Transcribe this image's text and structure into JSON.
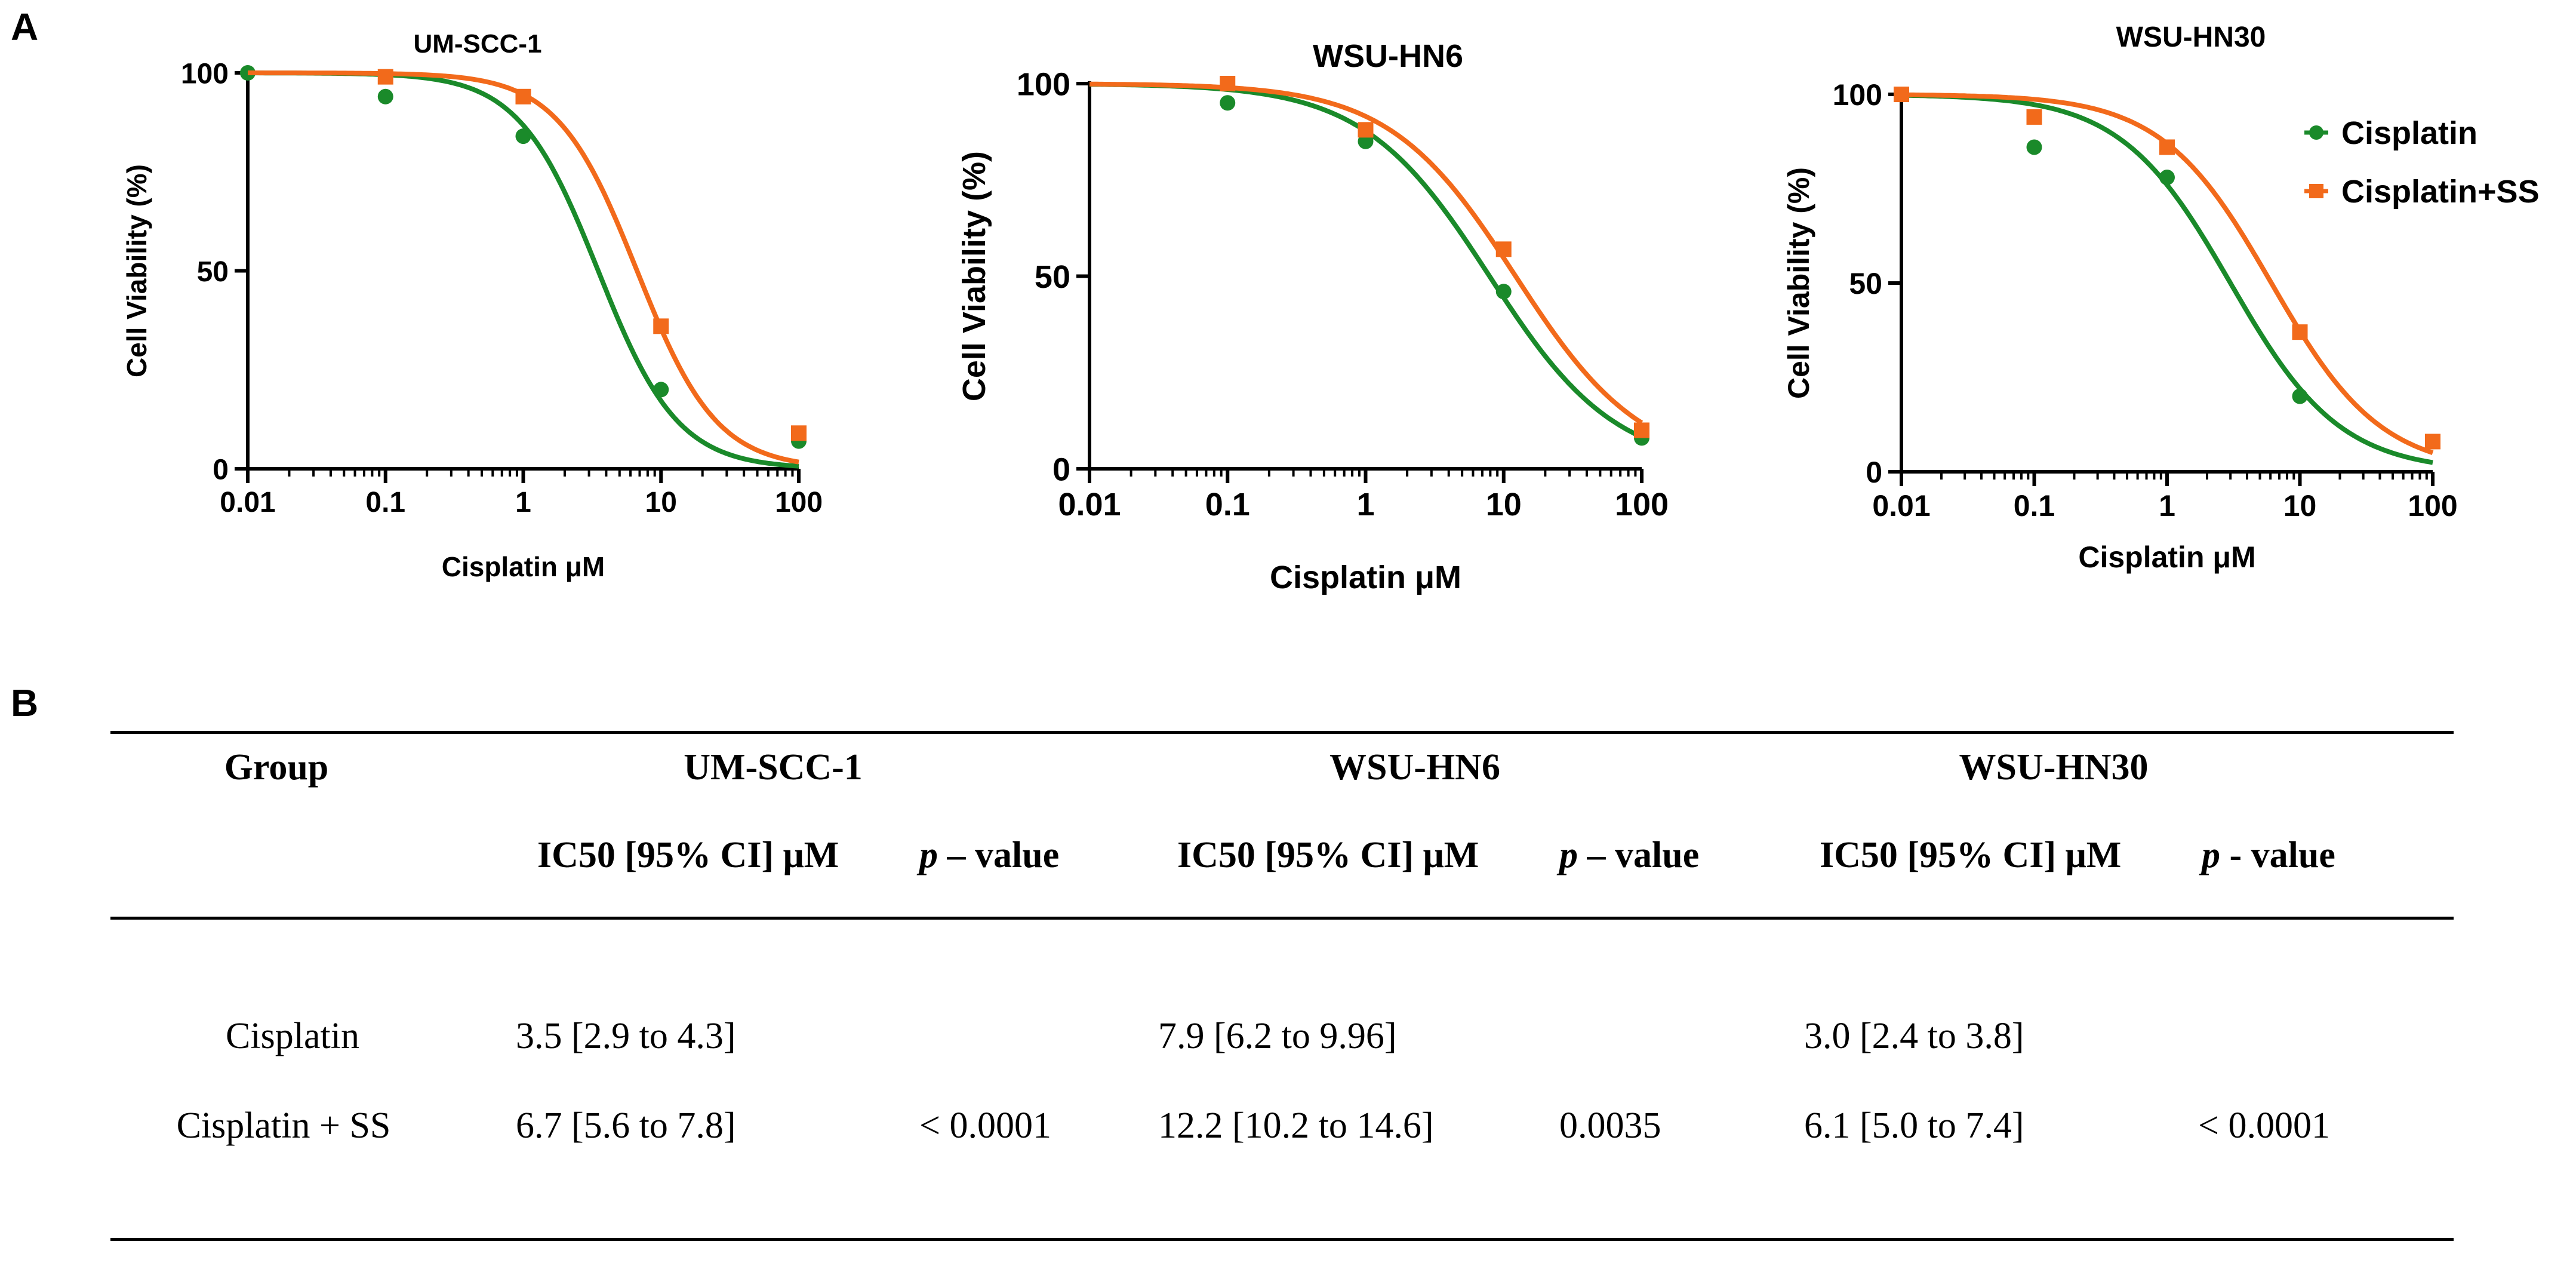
{
  "panels": {
    "a_letter": "A",
    "b_letter": "B"
  },
  "colors": {
    "cisplatin": "#1a8a2a",
    "cisplatin_ss": "#f26a1b"
  },
  "legend": {
    "entries": [
      "Cisplatin",
      "Cisplatin+SS"
    ],
    "placement": "top-right of third chart"
  },
  "chart_data": [
    {
      "type": "line",
      "title": "UM-SCC-1",
      "xlabel": "Cisplatin μM",
      "ylabel": "Cell Viability (%)",
      "xscale": "log",
      "xlim": [
        0.01,
        100
      ],
      "ylim": [
        0,
        100
      ],
      "xticks": [
        "0.01",
        "0.1",
        "1",
        "10",
        "100"
      ],
      "yticks": [
        "0",
        "50",
        "100"
      ],
      "series": [
        {
          "name": "Cisplatin",
          "marker": "circle",
          "x": [
            0.01,
            0.1,
            1,
            10,
            100
          ],
          "y": [
            100,
            94,
            84,
            20,
            7
          ],
          "ic50": 3.5,
          "hill": 1.5
        },
        {
          "name": "Cisplatin+SS",
          "marker": "square",
          "x": [
            0.1,
            1,
            10,
            100
          ],
          "y": [
            99,
            94,
            36,
            9
          ],
          "ic50": 6.7,
          "hill": 1.5
        }
      ]
    },
    {
      "type": "line",
      "title": "WSU-HN6",
      "xlabel": "Cisplatin μM",
      "ylabel": "Cell Viability (%)",
      "xscale": "log",
      "xlim": [
        0.01,
        100
      ],
      "ylim": [
        0,
        100
      ],
      "xticks": [
        "0.01",
        "0.1",
        "1",
        "10",
        "100"
      ],
      "yticks": [
        "0",
        "50",
        "100"
      ],
      "series": [
        {
          "name": "Cisplatin",
          "marker": "circle",
          "x": [
            0.1,
            1,
            10,
            100
          ],
          "y": [
            95,
            85,
            46,
            8
          ],
          "ic50": 7.9,
          "hill": 0.95
        },
        {
          "name": "Cisplatin+SS",
          "marker": "square",
          "x": [
            0.1,
            1,
            10,
            100
          ],
          "y": [
            100,
            88,
            57,
            10
          ],
          "ic50": 12.2,
          "hill": 0.95
        }
      ]
    },
    {
      "type": "line",
      "title": "WSU-HN30",
      "xlabel": "Cisplatin μM",
      "ylabel": "Cell Viability (%)",
      "xscale": "log",
      "xlim": [
        0.01,
        100
      ],
      "ylim": [
        0,
        100
      ],
      "xticks": [
        "0.01",
        "0.1",
        "1",
        "10",
        "100"
      ],
      "yticks": [
        "0",
        "50",
        "100"
      ],
      "series": [
        {
          "name": "Cisplatin",
          "marker": "circle",
          "x": [
            0.01,
            0.1,
            1,
            10,
            100
          ],
          "y": [
            100,
            86,
            78,
            20,
            8
          ],
          "ic50": 3.0,
          "hill": 1.05
        },
        {
          "name": "Cisplatin+SS",
          "marker": "square",
          "x": [
            0.01,
            0.1,
            1,
            10,
            100
          ],
          "y": [
            100,
            94,
            86,
            37,
            8
          ],
          "ic50": 6.1,
          "hill": 1.05
        }
      ]
    }
  ],
  "table": {
    "group_header": "Group",
    "lines": [
      "UM-SCC-1",
      "WSU-HN6",
      "WSU-HN30"
    ],
    "ic50_header": "IC50 [95% CI] μM",
    "p_italic": "p",
    "p_suffixes": [
      " – value",
      " – value",
      " - value"
    ],
    "rows": [
      {
        "group": "Cisplatin",
        "cells": [
          "3.5 [2.9 to 4.3]",
          "",
          "7.9 [6.2 to 9.96]",
          "",
          "3.0 [2.4 to 3.8]",
          ""
        ]
      },
      {
        "group": "Cisplatin + SS",
        "cells": [
          "6.7 [5.6 to 7.8]",
          "< 0.0001",
          "12.2 [10.2 to 14.6]",
          "0.0035",
          "6.1 [5.0 to 7.4]",
          "< 0.0001"
        ]
      }
    ]
  }
}
